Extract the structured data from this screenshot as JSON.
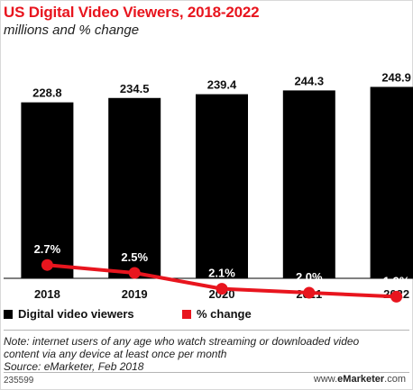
{
  "header": {
    "title": "US Digital Video Viewers, 2018-2022",
    "subtitle": "millions and % change"
  },
  "chart_data": {
    "type": "bar",
    "categories": [
      "2018",
      "2019",
      "2020",
      "2021",
      "2022"
    ],
    "series": [
      {
        "name": "Digital video viewers",
        "type": "bar",
        "values": [
          228.8,
          234.5,
          239.4,
          244.3,
          248.9
        ],
        "labels": [
          "228.8",
          "234.5",
          "239.4",
          "244.3",
          "248.9"
        ],
        "color": "#000000"
      },
      {
        "name": "% change",
        "type": "line",
        "values": [
          2.7,
          2.5,
          2.1,
          2.0,
          1.9
        ],
        "labels": [
          "2.7%",
          "2.5%",
          "2.1%",
          "2.0%",
          "1.9%"
        ],
        "color": "#e8151e"
      }
    ],
    "ylim": [
      0,
      260
    ],
    "grid": false,
    "legend": "bottom-left"
  },
  "legend": {
    "bar_label": "Digital video viewers",
    "line_label": "% change"
  },
  "note": {
    "line1": "Note: internet users of any age who watch streaming or downloaded video",
    "line2": "content via any device at least once per month",
    "line3": "Source: eMarketer, Feb 2018"
  },
  "footer": {
    "id": "235599",
    "site_prefix": "www.",
    "site_brand": "eMarketer",
    "site_suffix": ".com"
  },
  "colors": {
    "accent": "#e8151e",
    "bar": "#000000"
  }
}
